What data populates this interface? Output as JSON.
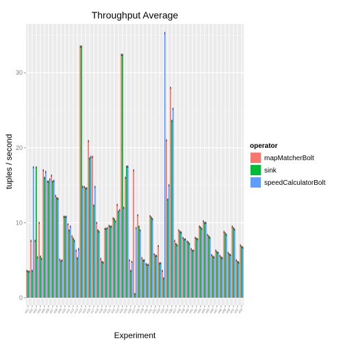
{
  "chart_data": {
    "type": "bar",
    "title": "Throughput Average",
    "xlabel": "Experiment",
    "ylabel": "tuples / second",
    "ylim": [
      -1,
      36.5
    ],
    "yticks": [
      0,
      10,
      20,
      30
    ],
    "grid": true,
    "legend_position": "right",
    "legend_title": "operator",
    "categories": [
      "e01",
      "e02",
      "e03",
      "e04",
      "e05",
      "e06",
      "e07",
      "e08",
      "e09",
      "e10",
      "e11",
      "e12",
      "e13",
      "e14",
      "e15",
      "e16",
      "e17",
      "e18",
      "e19",
      "e20",
      "e21",
      "e22",
      "e23",
      "e24",
      "e25",
      "e26",
      "e27",
      "e28",
      "e29",
      "e30",
      "e31",
      "e32",
      "e33",
      "e34",
      "e35",
      "e36",
      "e37",
      "e38",
      "e39",
      "e40",
      "e41",
      "e42",
      "e43",
      "e44",
      "e45",
      "e46",
      "e47",
      "e48",
      "e49",
      "e50",
      "e51",
      "e52",
      "e53"
    ],
    "series": [
      {
        "name": "mapMatcherBolt",
        "color": "#f8766d",
        "values": [
          3.6,
          7.6,
          7.6,
          10.0,
          17.0,
          15.5,
          16.3,
          13.6,
          5.1,
          10.8,
          9.8,
          8.2,
          6.3,
          33.5,
          14.8,
          20.9,
          18.8,
          10.0,
          5.2,
          9.2,
          9.6,
          10.6,
          12.4,
          32.4,
          16.0,
          5.0,
          17.0,
          11.0,
          5.3,
          4.5,
          10.9,
          5.8,
          6.9,
          3.6,
          21.0,
          28.0,
          7.6,
          9.0,
          8.0,
          7.5,
          6.5,
          8.0,
          9.5,
          10.2,
          8.4,
          5.7,
          6.3,
          5.6,
          8.8,
          6.0,
          9.5,
          5.0,
          7.0
        ]
      },
      {
        "name": "sink",
        "color": "#00ba38",
        "values": [
          3.5,
          3.6,
          17.4,
          5.5,
          16.0,
          15.5,
          15.5,
          13.3,
          4.9,
          10.8,
          9.0,
          7.9,
          5.3,
          33.5,
          14.6,
          18.6,
          12.3,
          9.0,
          4.8,
          9.2,
          9.5,
          10.5,
          11.5,
          32.4,
          17.5,
          3.6,
          0.5,
          9.5,
          5.0,
          4.4,
          10.7,
          5.6,
          4.6,
          2.6,
          13.1,
          23.6,
          7.2,
          8.8,
          7.8,
          7.4,
          6.3,
          7.9,
          9.4,
          10.0,
          8.2,
          5.5,
          6.1,
          5.4,
          8.6,
          5.8,
          9.3,
          4.8,
          6.8
        ]
      },
      {
        "name": "speedCalculatorBolt",
        "color": "#619cff",
        "values": [
          3.5,
          17.4,
          5.4,
          5.2,
          16.8,
          15.8,
          15.6,
          13.2,
          5.0,
          10.8,
          9.5,
          7.6,
          6.5,
          14.8,
          14.6,
          18.8,
          14.8,
          8.8,
          4.7,
          9.3,
          9.5,
          10.2,
          11.7,
          12.0,
          17.5,
          4.8,
          9.3,
          9.0,
          5.0,
          4.4,
          10.5,
          5.6,
          4.6,
          35.3,
          15.0,
          25.2,
          7.0,
          8.7,
          7.8,
          7.2,
          6.3,
          7.8,
          9.2,
          10.0,
          8.0,
          5.4,
          6.0,
          5.3,
          8.4,
          5.7,
          9.1,
          4.7,
          6.7
        ]
      }
    ]
  }
}
